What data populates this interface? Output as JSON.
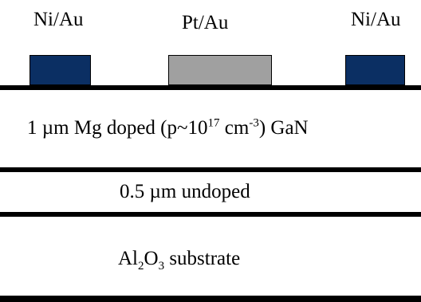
{
  "colors": {
    "ni_au_pad": "#0b2f63",
    "pt_au_pad": "#a0a0a0",
    "layer_line": "#000000"
  },
  "contacts": {
    "left": "Ni/Au",
    "middle": "Pt/Au",
    "right": "Ni/Au"
  },
  "layers": {
    "pgan": {
      "prefix": "1 µm Mg doped (p~10",
      "exp1": "17",
      "mid": " cm",
      "exp2": "-3",
      "suffix": ")  GaN"
    },
    "undoped": "0.5 µm undoped",
    "substrate": {
      "al": "Al",
      "sub1": "2",
      "o": "O",
      "sub2": "3",
      "suffix": "  substrate"
    }
  }
}
